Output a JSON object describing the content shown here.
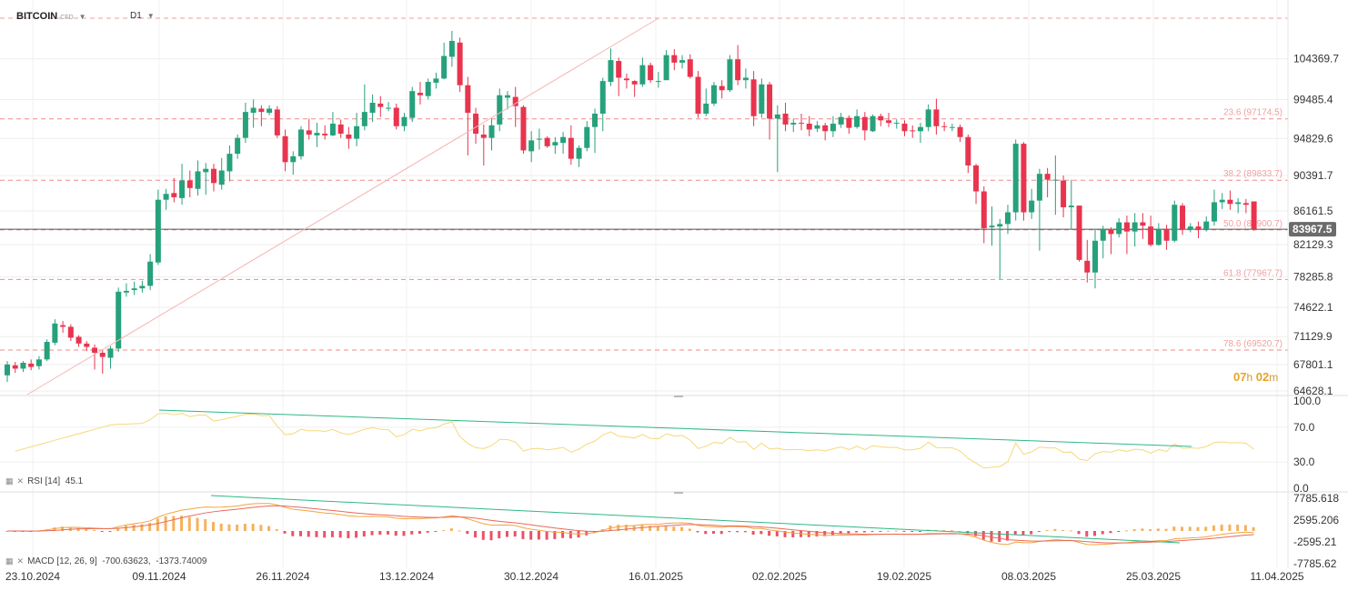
{
  "header": {
    "symbol": "BITCOIN",
    "symbol_suffix": "CFD",
    "timeframe": "D1"
  },
  "countdown": {
    "hours": "07",
    "hours_unit": "h",
    "minutes": "02",
    "minutes_unit": "m"
  },
  "rsi": {
    "label": "RSI [14]",
    "value": "45.1",
    "levels": [
      "100.0",
      "70.0",
      "30.0",
      "0.0"
    ]
  },
  "macd": {
    "label": "MACD [12, 26, 9]",
    "value1": "-700.63623,",
    "value2": "-1373.74009",
    "levels": [
      "7785.618",
      "2595.206",
      "-2595.21",
      "-7785.62"
    ]
  },
  "colors": {
    "bull": "#26a17b",
    "bear": "#e8344e",
    "fib": "#f08a8a",
    "trend": "#2db884",
    "rsi_line": "#f5d97a",
    "macd_line": "#f4a340",
    "signal_line": "#e86a5a"
  },
  "chart_data": {
    "type": "candlestick",
    "price_axis": {
      "min": 64628.1,
      "max": 109000,
      "ticks": [
        "104369.7",
        "99485.4",
        "94829.6",
        "90391.7",
        "86161.5",
        "82129.3",
        "78285.8",
        "74622.1",
        "71129.9",
        "67801.1",
        "64628.1"
      ]
    },
    "last_price": "83967.5",
    "last_price_value": 83967.5,
    "date_labels": [
      "23.10.2024",
      "09.11.2024",
      "26.11.2024",
      "13.12.2024",
      "30.12.2024",
      "16.01.2025",
      "02.02.2025",
      "19.02.2025",
      "08.03.2025",
      "25.03.2025",
      "11.04.2025"
    ],
    "fib_levels": [
      {
        "label": "23.6 (97174.5)",
        "value": 97174.5
      },
      {
        "label": "38.2 (89833.7)",
        "value": 89833.7
      },
      {
        "label": "50.0 (83900.7)",
        "value": 83900.7
      },
      {
        "label": "61.8 (77967.7)",
        "value": 77967.7
      },
      {
        "label": "78.6 (69520.7)",
        "value": 69520.7
      }
    ],
    "candles": [
      [
        66500,
        67800,
        65700,
        68200
      ],
      [
        67700,
        67300,
        66800,
        68100
      ],
      [
        67300,
        68000,
        66900,
        68200
      ],
      [
        67900,
        67500,
        67100,
        68400
      ],
      [
        67600,
        68400,
        67200,
        68800
      ],
      [
        68400,
        70500,
        68200,
        70800
      ],
      [
        70400,
        72700,
        70100,
        73200
      ],
      [
        72500,
        72300,
        71600,
        73000
      ],
      [
        72300,
        71000,
        70600,
        72600
      ],
      [
        71100,
        70300,
        69900,
        71300
      ],
      [
        70300,
        69900,
        69400,
        70600
      ],
      [
        69800,
        69200,
        67200,
        70200
      ],
      [
        69200,
        68700,
        66700,
        69600
      ],
      [
        68600,
        69700,
        67300,
        70000
      ],
      [
        69700,
        76500,
        69300,
        77000
      ],
      [
        76400,
        76600,
        75900,
        77500
      ],
      [
        76700,
        76900,
        76100,
        77700
      ],
      [
        76900,
        77200,
        76400,
        77800
      ],
      [
        77200,
        80100,
        76700,
        81000
      ],
      [
        80000,
        87500,
        79700,
        88700
      ],
      [
        87500,
        88200,
        86300,
        88800
      ],
      [
        88300,
        87800,
        87200,
        90100
      ],
      [
        87700,
        89800,
        86900,
        91800
      ],
      [
        89800,
        88900,
        87800,
        91000
      ],
      [
        88800,
        90900,
        88000,
        92200
      ],
      [
        90800,
        91200,
        88100,
        91900
      ],
      [
        91200,
        89500,
        88500,
        91800
      ],
      [
        89300,
        91000,
        88700,
        92500
      ],
      [
        90900,
        93000,
        89700,
        94000
      ],
      [
        93000,
        94900,
        92400,
        95300
      ],
      [
        94900,
        98000,
        94300,
        99100
      ],
      [
        97900,
        98500,
        96100,
        99500
      ],
      [
        98400,
        98000,
        96300,
        98800
      ],
      [
        97900,
        98400,
        97600,
        98800
      ],
      [
        98300,
        95200,
        94900,
        98700
      ],
      [
        95100,
        92000,
        90900,
        95900
      ],
      [
        92000,
        92700,
        90500,
        93300
      ],
      [
        92700,
        95900,
        92300,
        96300
      ],
      [
        95800,
        95300,
        94700,
        97200
      ],
      [
        95200,
        95500,
        93800,
        96700
      ],
      [
        95400,
        95200,
        94700,
        96400
      ],
      [
        95200,
        96600,
        95100,
        98000
      ],
      [
        96500,
        95400,
        94900,
        97100
      ],
      [
        95300,
        94800,
        93600,
        96200
      ],
      [
        94800,
        96300,
        93900,
        97900
      ],
      [
        96300,
        98000,
        95800,
        101300
      ],
      [
        97900,
        99100,
        96800,
        100100
      ],
      [
        99000,
        98600,
        97400,
        99900
      ],
      [
        98500,
        98500,
        98100,
        99200
      ],
      [
        98500,
        96300,
        95900,
        99000
      ],
      [
        96300,
        97400,
        95700,
        97900
      ],
      [
        97300,
        100500,
        96800,
        101000
      ],
      [
        100300,
        100000,
        98900,
        101600
      ],
      [
        99900,
        101600,
        99500,
        102000
      ],
      [
        101500,
        102000,
        100800,
        102700
      ],
      [
        102000,
        104700,
        101900,
        106300
      ],
      [
        104600,
        106500,
        103400,
        107700
      ],
      [
        106300,
        101200,
        100400,
        106900
      ],
      [
        101200,
        97900,
        92800,
        102200
      ],
      [
        97800,
        95400,
        94200,
        98500
      ],
      [
        95300,
        94900,
        91600,
        96500
      ],
      [
        94900,
        96400,
        93400,
        97200
      ],
      [
        96500,
        100000,
        95700,
        100800
      ],
      [
        99700,
        100000,
        98300,
        100500
      ],
      [
        99800,
        98700,
        96200,
        101000
      ],
      [
        98600,
        93400,
        93000,
        98800
      ],
      [
        93300,
        94600,
        92000,
        95700
      ],
      [
        94700,
        94800,
        93500,
        96000
      ],
      [
        94900,
        93900,
        93700,
        95100
      ],
      [
        94000,
        94400,
        93000,
        95000
      ],
      [
        94300,
        95000,
        93000,
        95600
      ],
      [
        94900,
        92400,
        91700,
        96400
      ],
      [
        92400,
        93700,
        91400,
        94000
      ],
      [
        93700,
        96200,
        93300,
        96900
      ],
      [
        96200,
        97800,
        93100,
        98400
      ],
      [
        97800,
        101700,
        95700,
        102100
      ],
      [
        101600,
        104200,
        101100,
        105600
      ],
      [
        104100,
        102100,
        99900,
        104500
      ],
      [
        102000,
        101800,
        100800,
        102600
      ],
      [
        101700,
        101300,
        99800,
        101800
      ],
      [
        101300,
        103600,
        101000,
        104500
      ],
      [
        103600,
        101800,
        101500,
        103900
      ],
      [
        101700,
        101700,
        100900,
        102800
      ],
      [
        101800,
        104800,
        101900,
        105400
      ],
      [
        104800,
        103900,
        103000,
        105500
      ],
      [
        103900,
        104200,
        103200,
        104800
      ],
      [
        104300,
        102200,
        102000,
        104900
      ],
      [
        102200,
        97800,
        97300,
        102900
      ],
      [
        97800,
        99000,
        97500,
        100800
      ],
      [
        99000,
        101200,
        98700,
        101600
      ],
      [
        101100,
        100600,
        99600,
        101800
      ],
      [
        100600,
        104300,
        100400,
        104800
      ],
      [
        104300,
        101800,
        101200,
        106000
      ],
      [
        101800,
        102100,
        100800,
        103200
      ],
      [
        101900,
        97500,
        96300,
        102900
      ],
      [
        97800,
        101300,
        97300,
        102000
      ],
      [
        101300,
        97200,
        94700,
        101600
      ],
      [
        97200,
        97700,
        90800,
        98800
      ],
      [
        97800,
        96500,
        95700,
        99100
      ],
      [
        96500,
        96700,
        95600,
        97200
      ],
      [
        96700,
        96600,
        95800,
        97800
      ],
      [
        96600,
        95900,
        95100,
        97500
      ],
      [
        96000,
        96400,
        95600,
        96900
      ],
      [
        96400,
        95700,
        94600,
        96700
      ],
      [
        95700,
        96600,
        95000,
        97500
      ],
      [
        96500,
        97400,
        96100,
        97900
      ],
      [
        97300,
        96100,
        95400,
        97600
      ],
      [
        96200,
        97500,
        96000,
        98300
      ],
      [
        97400,
        95800,
        94600,
        98000
      ],
      [
        95700,
        97500,
        95600,
        97700
      ],
      [
        97500,
        97000,
        96300,
        97800
      ],
      [
        97000,
        96700,
        96200,
        97900
      ],
      [
        96600,
        96700,
        96000,
        97100
      ],
      [
        96600,
        95700,
        95100,
        97000
      ],
      [
        95800,
        95700,
        94900,
        96400
      ],
      [
        95700,
        96200,
        94300,
        96700
      ],
      [
        96200,
        98300,
        95700,
        98900
      ],
      [
        98300,
        96300,
        95300,
        99600
      ],
      [
        96300,
        96200,
        95700,
        96800
      ],
      [
        96100,
        96200,
        95700,
        96600
      ],
      [
        96200,
        95000,
        94400,
        96500
      ],
      [
        95000,
        91600,
        90700,
        95300
      ],
      [
        91600,
        88500,
        87000,
        91800
      ],
      [
        88500,
        84100,
        82300,
        89100
      ],
      [
        84200,
        84400,
        82000,
        86700
      ],
      [
        84300,
        84600,
        78000,
        85200
      ],
      [
        84600,
        86000,
        83400,
        86900
      ],
      [
        86000,
        94200,
        85000,
        94700
      ],
      [
        94200,
        86000,
        85000,
        94400
      ],
      [
        86000,
        87400,
        85200,
        88800
      ],
      [
        87400,
        90600,
        81400,
        91200
      ],
      [
        90600,
        89900,
        87800,
        91300
      ],
      [
        89900,
        89900,
        85700,
        92800
      ],
      [
        89800,
        86600,
        85400,
        90400
      ],
      [
        86600,
        86800,
        84000,
        89900
      ],
      [
        86800,
        80300,
        80100,
        86800
      ],
      [
        80200,
        78800,
        77600,
        82700
      ],
      [
        78800,
        82600,
        76900,
        83900
      ],
      [
        82600,
        84000,
        80500,
        84400
      ],
      [
        83900,
        83400,
        81000,
        84200
      ],
      [
        83400,
        84800,
        83000,
        85300
      ],
      [
        84800,
        83700,
        81000,
        85600
      ],
      [
        83700,
        84800,
        81900,
        85900
      ],
      [
        84800,
        84400,
        82800,
        85900
      ],
      [
        84300,
        82100,
        81900,
        85600
      ],
      [
        82100,
        84000,
        82000,
        84700
      ],
      [
        84000,
        82600,
        81500,
        84500
      ],
      [
        82600,
        86900,
        82400,
        87400
      ],
      [
        86800,
        84000,
        83300,
        87100
      ],
      [
        84000,
        84300,
        83600,
        84700
      ],
      [
        84300,
        83900,
        82900,
        84900
      ],
      [
        84000,
        84900,
        83700,
        85500
      ],
      [
        84900,
        87200,
        84400,
        88700
      ],
      [
        87200,
        87500,
        86400,
        88300
      ],
      [
        87500,
        87000,
        86300,
        88600
      ],
      [
        87000,
        87200,
        85900,
        87700
      ],
      [
        87100,
        86900,
        85900,
        87600
      ],
      [
        87300,
        84000,
        83800,
        87300
      ]
    ]
  }
}
